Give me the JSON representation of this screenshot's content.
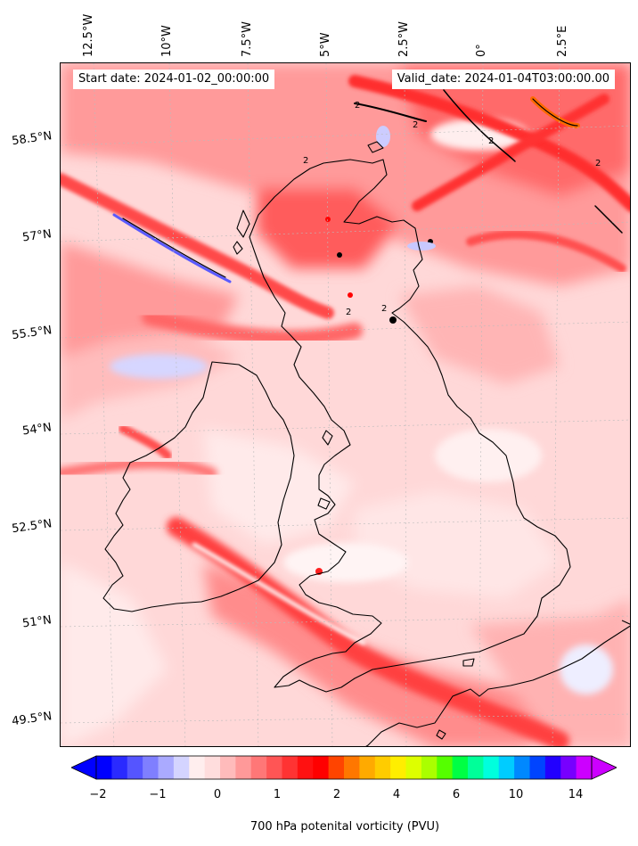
{
  "header": {
    "start_date": "Start date: 2024-01-02_00:00:00",
    "valid_date": "Valid_date: 2024-01-04T03:00:00.00"
  },
  "axes": {
    "longitude_labels": [
      "12.5°W",
      "10°W",
      "7.5°W",
      "5°W",
      "2.5°W",
      "0°",
      "2.5°E"
    ],
    "latitude_labels": [
      "58.5°N",
      "57°N",
      "55.5°N",
      "54°N",
      "52.5°N",
      "51°N",
      "49.5°N"
    ]
  },
  "colorbar": {
    "label": "700 hPa potenital vorticity (PVU)",
    "tick_labels": [
      "−2",
      "−1",
      "0",
      "1",
      "2",
      "4",
      "6",
      "10",
      "14"
    ],
    "colors": [
      "#0000ff",
      "#2a2aff",
      "#5555ff",
      "#7f7fff",
      "#aaaaff",
      "#d4d4ff",
      "#ffeeee",
      "#ffdddd",
      "#ffbbbb",
      "#ff9999",
      "#ff7777",
      "#ff5555",
      "#ff3333",
      "#ff1111",
      "#ff0000",
      "#ff4400",
      "#ff7700",
      "#ffaa00",
      "#ffcc00",
      "#ffee00",
      "#ddff00",
      "#aaff00",
      "#55ff00",
      "#00ff44",
      "#00ff99",
      "#00ffdd",
      "#00ccff",
      "#0088ff",
      "#0044ff",
      "#2200ff",
      "#7700ff",
      "#cc00ff"
    ]
  }
}
